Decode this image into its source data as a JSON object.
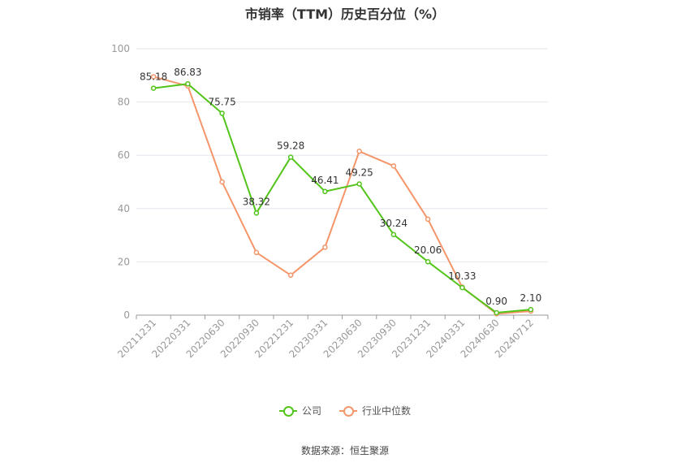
{
  "chart_data": {
    "type": "line",
    "title": "市销率（TTM）历史百分位（%）",
    "categories": [
      "20211231",
      "20220331",
      "20220630",
      "20220930",
      "20221231",
      "20230331",
      "20230630",
      "20230930",
      "20231231",
      "20240331",
      "20240630",
      "20240712"
    ],
    "series": [
      {
        "name": "公司",
        "color": "#52c41a",
        "values": [
          85.18,
          86.83,
          75.75,
          38.32,
          59.28,
          46.41,
          49.25,
          30.24,
          20.06,
          10.33,
          0.9,
          2.1
        ],
        "labels": [
          "85.18",
          "86.83",
          "75.75",
          "38.32",
          "59.28",
          "46.41",
          "49.25",
          "30.24",
          "20.06",
          "10.33",
          "0.90",
          "2.10"
        ]
      },
      {
        "name": "行业中位数",
        "color": "#f4956a",
        "values": [
          89.5,
          86.0,
          50.0,
          23.5,
          15.0,
          25.5,
          61.5,
          56.0,
          36.0,
          10.5,
          0.5,
          1.5
        ]
      }
    ],
    "ylim": [
      0,
      100
    ],
    "yticks": [
      "0",
      "20",
      "40",
      "60",
      "80",
      "100"
    ],
    "grid": true,
    "legend_position": "bottom"
  },
  "footer": {
    "source": "数据来源：恒生聚源"
  }
}
